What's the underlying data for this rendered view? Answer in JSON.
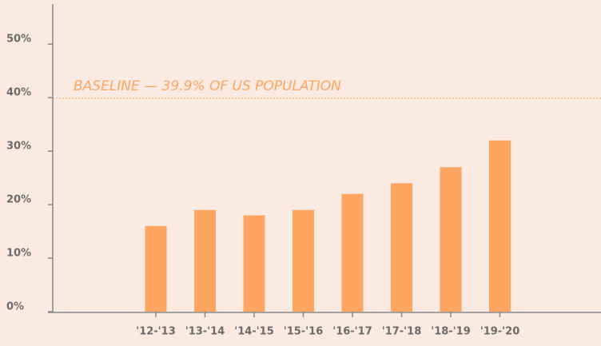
{
  "chart_data": {
    "type": "bar",
    "categories": [
      "'12-'13",
      "'13-'14",
      "'14-'15",
      "'15-'16",
      "'16-'17",
      "'17-'18",
      "'18-'19",
      "'19-'20"
    ],
    "values": [
      16,
      19,
      18,
      19,
      22,
      24,
      27,
      32
    ],
    "color": "#ffa562",
    "ylim": [
      0,
      57.5
    ],
    "yticks": [
      {
        "value": 0,
        "label": "0%"
      },
      {
        "value": 10,
        "label": "10%"
      },
      {
        "value": 20,
        "label": "20%"
      },
      {
        "value": 30,
        "label": "30%"
      },
      {
        "value": 40,
        "label": "40%"
      },
      {
        "value": 50,
        "label": "50%"
      }
    ],
    "baseline": {
      "value": 39.9,
      "label": "BASELINE — 39.9% OF US POPULATION"
    }
  }
}
